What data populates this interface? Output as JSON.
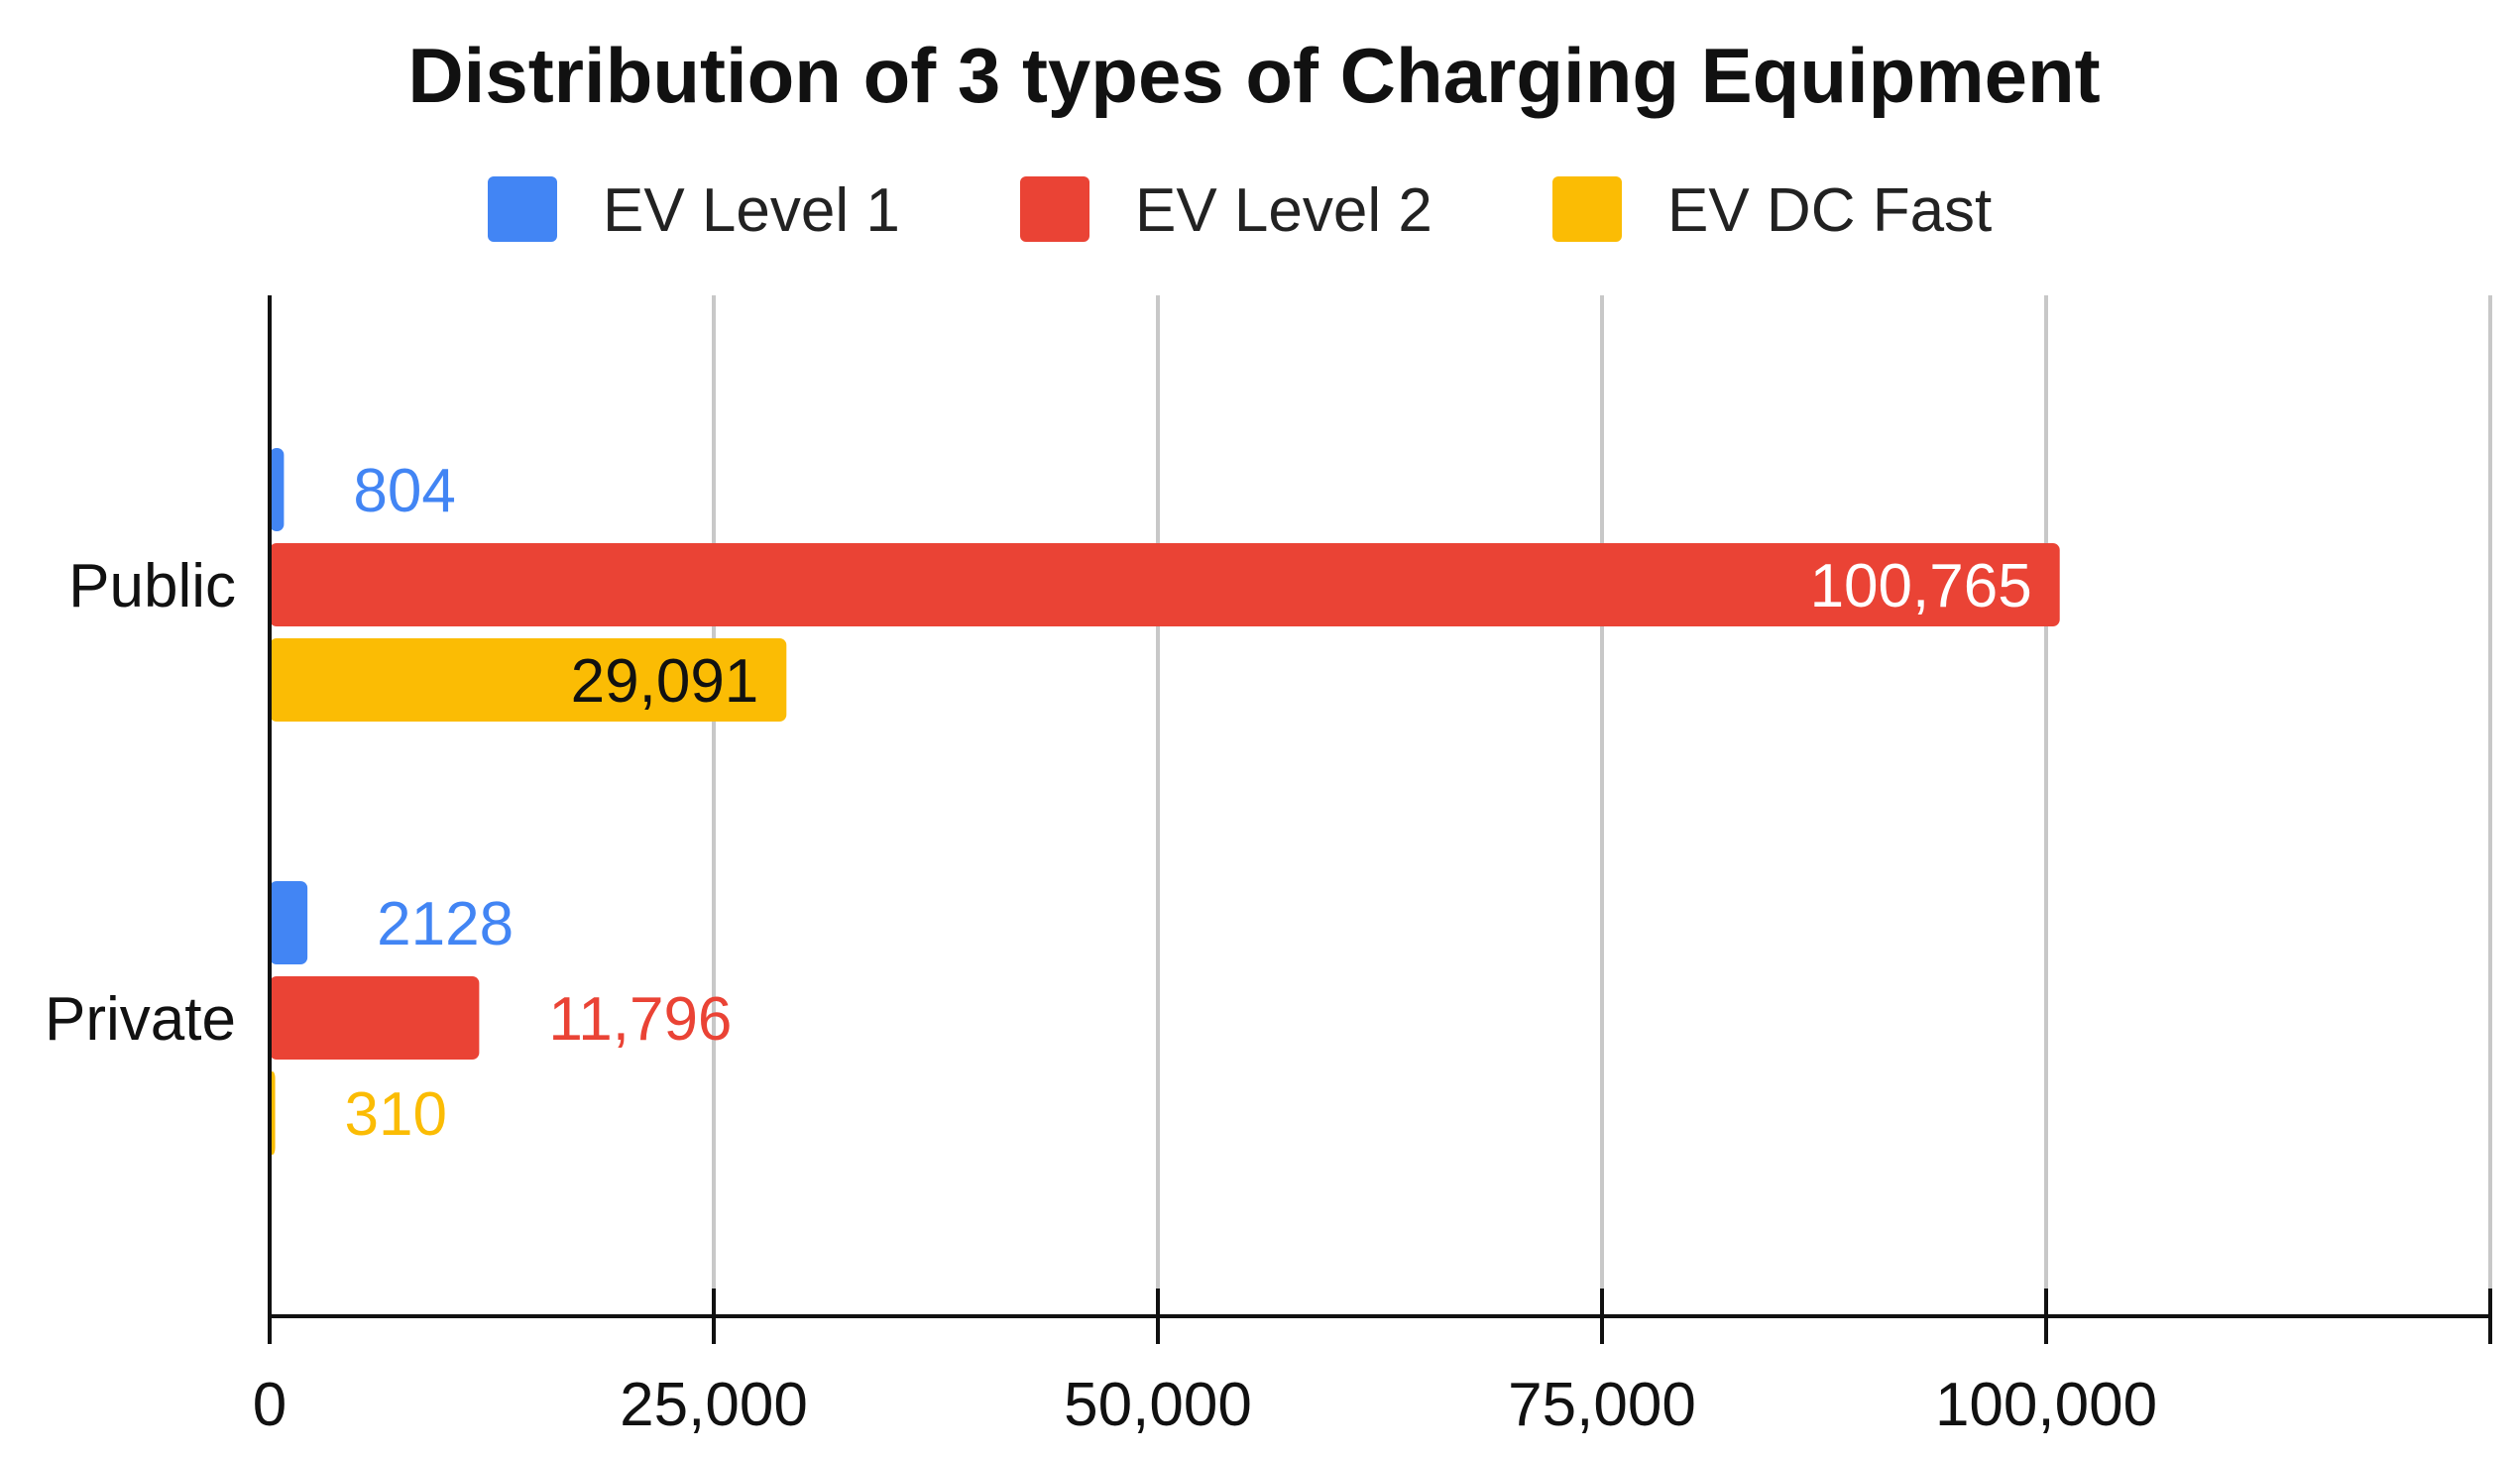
{
  "chart_data": {
    "type": "bar",
    "orientation": "horizontal",
    "title": "Distribution of 3 types of Charging Equipment",
    "categories": [
      "Public",
      "Private"
    ],
    "series": [
      {
        "name": "EV Level 1",
        "color": "#4285F4",
        "values": [
          804,
          2128
        ],
        "labels": [
          "804",
          "2128"
        ],
        "label_color": "#4285F4"
      },
      {
        "name": "EV Level 2",
        "color": "#EA4335",
        "values": [
          100765,
          11796
        ],
        "labels": [
          "100,765",
          "11,796"
        ],
        "label_color": "#EA4335"
      },
      {
        "name": "EV DC Fast",
        "color": "#FBBC04",
        "values": [
          29091,
          310
        ],
        "labels": [
          "29,091",
          "310"
        ],
        "label_color": "#FBBC04"
      }
    ],
    "xlim": [
      0,
      125000
    ],
    "xticks": [
      0,
      25000,
      50000,
      75000,
      100000
    ],
    "xtick_labels": [
      "0",
      "25,000",
      "50,000",
      "75,000",
      "100,000"
    ],
    "xlabel": "",
    "ylabel": "",
    "grid": true,
    "legend_position": "top"
  }
}
